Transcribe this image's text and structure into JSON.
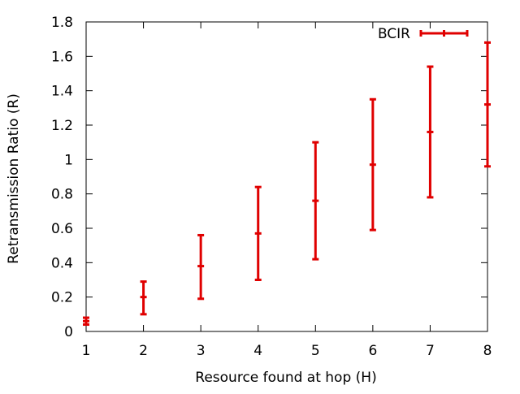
{
  "chart_data": {
    "type": "errorbar",
    "title": "",
    "xlabel": "Resource found at hop (H)",
    "ylabel": "Retransmission Ratio (R)",
    "xlim": [
      1,
      8
    ],
    "ylim": [
      0,
      1.8
    ],
    "xticks": [
      "1",
      "2",
      "3",
      "4",
      "5",
      "6",
      "7",
      "8"
    ],
    "yticks": [
      "0",
      "0.2",
      "0.4",
      "0.6",
      "0.8",
      "1",
      "1.2",
      "1.4",
      "1.6",
      "1.8"
    ],
    "grid": false,
    "legend_position": "top-right",
    "series": [
      {
        "name": "BCIR",
        "color": "#e00000",
        "x": [
          1,
          2,
          3,
          4,
          5,
          6,
          7,
          8
        ],
        "y": [
          0.06,
          0.2,
          0.38,
          0.57,
          0.76,
          0.97,
          1.16,
          1.32
        ],
        "y_low": [
          0.04,
          0.1,
          0.19,
          0.3,
          0.42,
          0.59,
          0.78,
          0.96
        ],
        "y_high": [
          0.08,
          0.29,
          0.56,
          0.84,
          1.1,
          1.35,
          1.54,
          1.68
        ]
      }
    ]
  }
}
